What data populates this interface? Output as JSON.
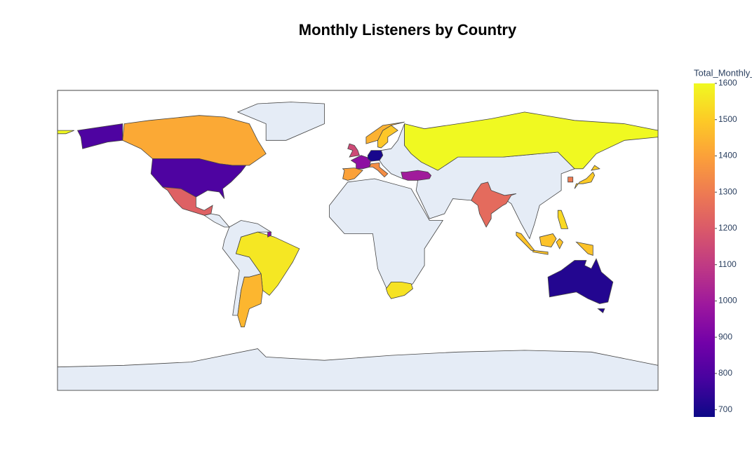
{
  "chart_data": {
    "type": "choropleth",
    "title": "Monthly Listeners by Country",
    "colorbar_title": "Total_Monthly_Listeners",
    "values": [
      1420,
      800,
      1220,
      1560,
      1450,
      1150,
      950,
      700,
      1400,
      1350,
      1490,
      1440,
      1600,
      1000,
      1250,
      1500,
      1300,
      1480,
      1530,
      1550,
      720
    ],
    "zlim": [
      680,
      1600
    ],
    "zticks": [
      700,
      800,
      900,
      1000,
      1100,
      1200,
      1300,
      1400,
      1500,
      1600
    ],
    "colorscale": [
      "#0d0887",
      "#46039f",
      "#7201a8",
      "#9c179e",
      "#bd3786",
      "#d8576b",
      "#ed7953",
      "#fb9f3a",
      "#fdca26",
      "#f0f921"
    ]
  }
}
